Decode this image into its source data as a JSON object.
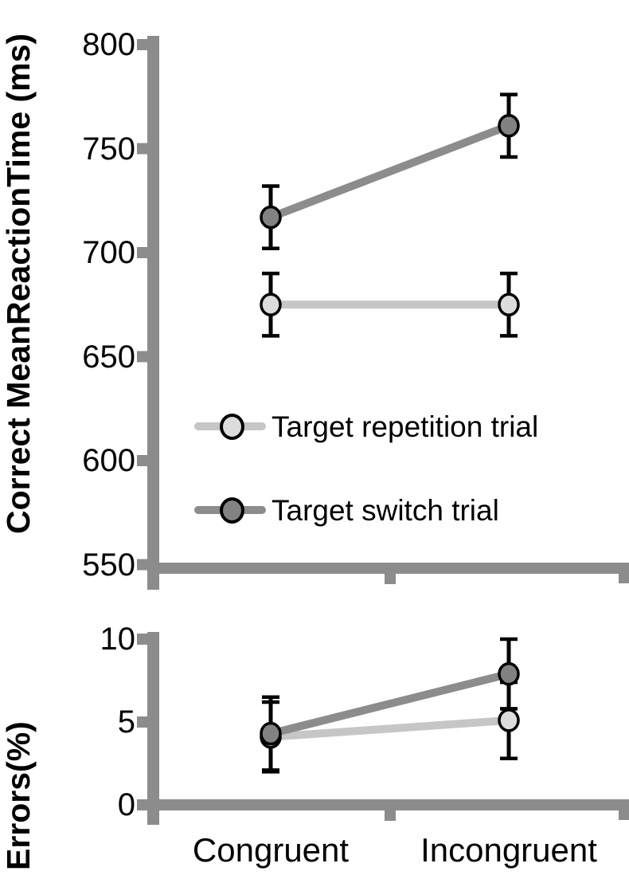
{
  "style": {
    "background": "#ffffff",
    "axis_color": "#8c8c8c",
    "error_bar_color": "#000000",
    "text_color": "#000000"
  },
  "legend": {
    "entries": [
      "Target repetition trial",
      "Target switch trial"
    ]
  },
  "chart_data": [
    {
      "type": "line",
      "panel": "reaction_time",
      "title": "",
      "ylabel": "Correct MeanReactionTime (ms)",
      "xlabel": "",
      "categories": [
        "Congruent",
        "Incongruent"
      ],
      "ylim": [
        550,
        800
      ],
      "yticks": [
        800,
        750,
        700,
        650,
        600,
        550
      ],
      "grid": false,
      "legend_position": "inside-middle-left",
      "series": [
        {
          "name": "Target repetition trial",
          "values": [
            675,
            675
          ],
          "errors": [
            15,
            15
          ],
          "line_color": "#c6c6c6",
          "marker_fill": "#dcdcdc"
        },
        {
          "name": "Target switch trial",
          "values": [
            717,
            761
          ],
          "errors": [
            15,
            15
          ],
          "line_color": "#8c8c8c",
          "marker_fill": "#828282"
        }
      ]
    },
    {
      "type": "line",
      "panel": "errors",
      "title": "",
      "ylabel": "Errors(%)",
      "xlabel": "",
      "categories": [
        "Congruent",
        "Incongruent"
      ],
      "ylim": [
        0,
        10
      ],
      "yticks": [
        10,
        5,
        0
      ],
      "grid": false,
      "series": [
        {
          "name": "Target repetition trial",
          "values": [
            4.1,
            5.1
          ],
          "errors": [
            2.1,
            2.3
          ],
          "line_color": "#c6c6c6",
          "marker_fill": "#dcdcdc"
        },
        {
          "name": "Target switch trial",
          "values": [
            4.3,
            7.9
          ],
          "errors": [
            2.2,
            2.1
          ],
          "line_color": "#8c8c8c",
          "marker_fill": "#828282"
        }
      ]
    }
  ]
}
